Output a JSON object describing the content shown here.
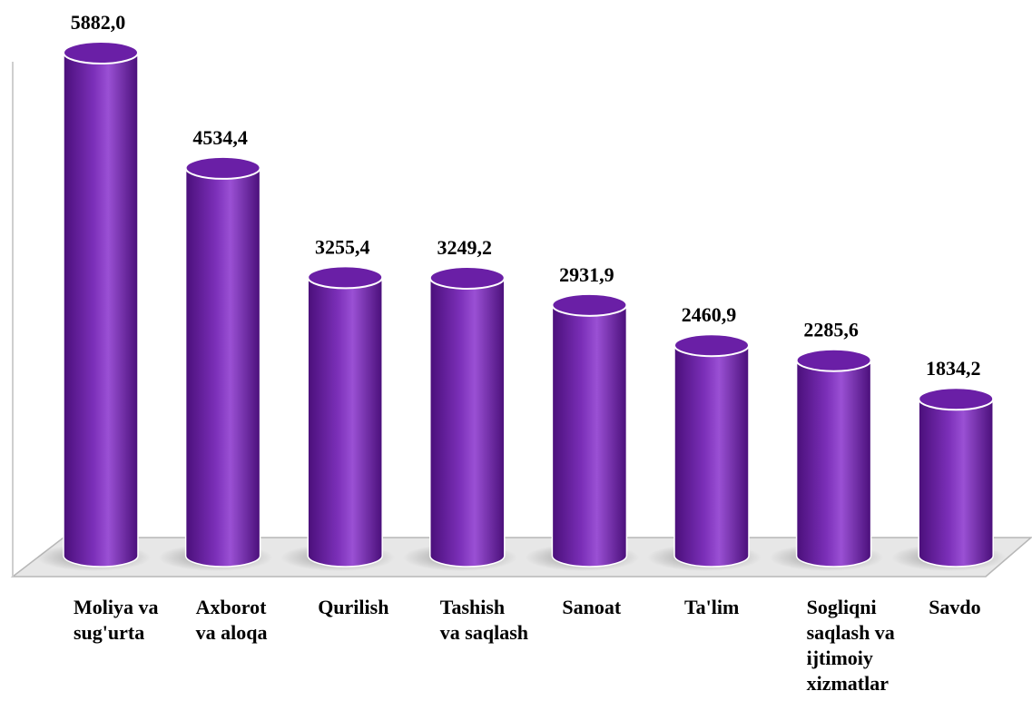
{
  "chart_data": {
    "type": "bar",
    "bar_shape": "cylinder",
    "view": "3d",
    "categories": [
      [
        "Moliya va",
        "sug'urta"
      ],
      [
        "Axborot",
        "va aloqa"
      ],
      [
        "Qurilish"
      ],
      [
        "Tashish",
        "va saqlash"
      ],
      [
        "Sanoat"
      ],
      [
        "Ta'lim"
      ],
      [
        "Sogliqni",
        "saqlash va",
        "ijtimoiy",
        "xizmatlar"
      ],
      [
        "Savdo"
      ]
    ],
    "values": [
      5882.0,
      4534.4,
      3255.4,
      3249.2,
      2931.9,
      2460.9,
      2285.6,
      1834.2
    ],
    "value_labels": [
      "5882,0",
      "4534,4",
      "3255,4",
      "3249,2",
      "2931,9",
      "2460,9",
      "2285,6",
      "1834,2"
    ],
    "title": "",
    "xlabel": "",
    "ylabel": "",
    "ylim": [
      0,
      5882
    ],
    "grid": false,
    "legend": "none",
    "colors": {
      "bar_dark": "#4a0f7a",
      "bar_mid": "#7b2fb8",
      "bar_light": "#9a50d4",
      "bar_top": "#6a1fa6",
      "bar_outline": "#ffffff",
      "floor": "#e7e7e7",
      "floor_edge": "#b7b7b7",
      "wall": "#cfcfcf",
      "text": "#000000"
    }
  }
}
